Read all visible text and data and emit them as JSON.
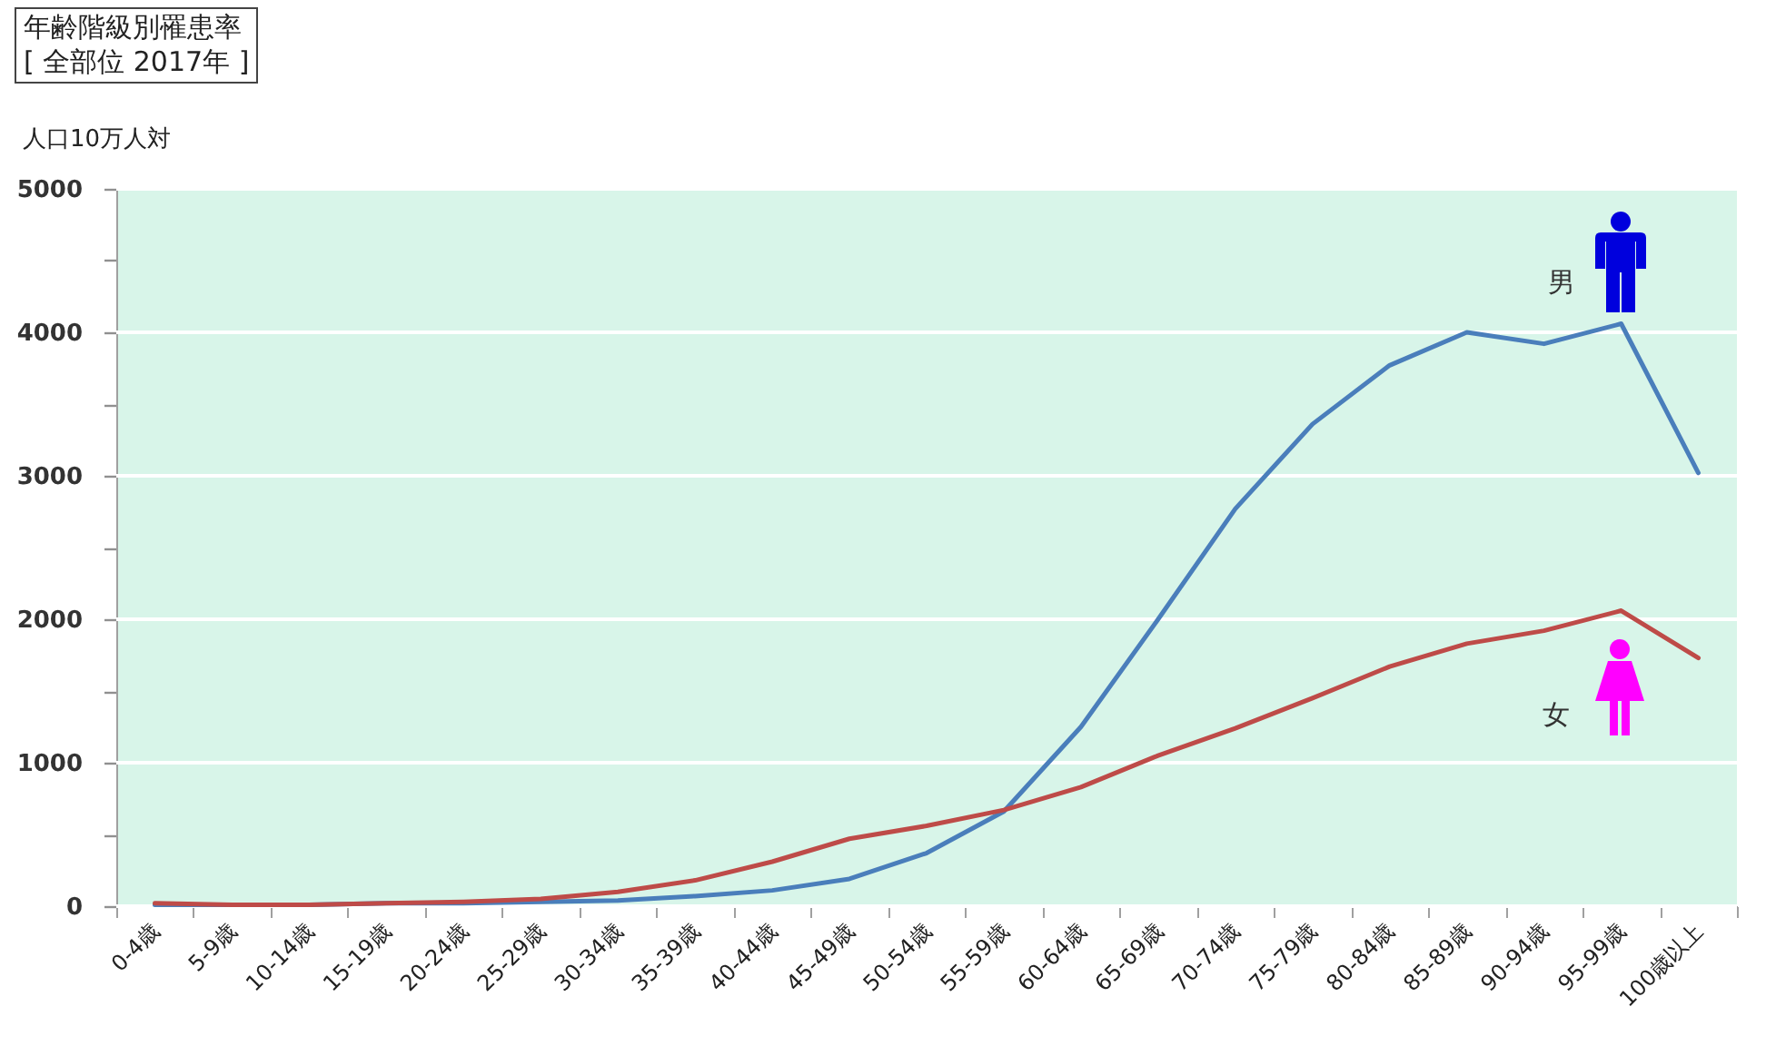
{
  "chart_data": {
    "type": "line",
    "title": "年齢階級別罹患率",
    "subtitle": "[ 全部位 2017年 ]",
    "ylabel": "人口10万人対",
    "categories": [
      "0-4歳",
      "5-9歳",
      "10-14歳",
      "15-19歳",
      "20-24歳",
      "25-29歳",
      "30-34歳",
      "35-39歳",
      "40-44歳",
      "45-49歳",
      "50-54歳",
      "55-59歳",
      "60-64歳",
      "65-69歳",
      "70-74歳",
      "75-79歳",
      "80-84歳",
      "85-89歳",
      "90-94歳",
      "95-99歳",
      "100歳以上"
    ],
    "series": [
      {
        "name": "男",
        "color": "#4a7ebb",
        "values": [
          10,
          10,
          10,
          20,
          20,
          30,
          40,
          70,
          110,
          190,
          370,
          660,
          1250,
          2000,
          2770,
          3360,
          3770,
          4000,
          3920,
          4060,
          3020
        ]
      },
      {
        "name": "女",
        "color": "#be4b48",
        "values": [
          20,
          10,
          10,
          20,
          30,
          50,
          100,
          180,
          310,
          470,
          560,
          670,
          830,
          1050,
          1240,
          1450,
          1670,
          1830,
          1920,
          2060,
          1730
        ]
      }
    ],
    "ylim": [
      0,
      5000
    ],
    "yticks": [
      0,
      {
        "value": 500,
        "label": null
      },
      1000,
      {
        "value": 1500,
        "label": null
      },
      2000,
      {
        "value": 2500,
        "label": null
      },
      3000,
      {
        "value": 3500,
        "label": null
      },
      4000,
      {
        "value": 4500,
        "label": null
      },
      5000
    ],
    "grid": "y"
  }
}
